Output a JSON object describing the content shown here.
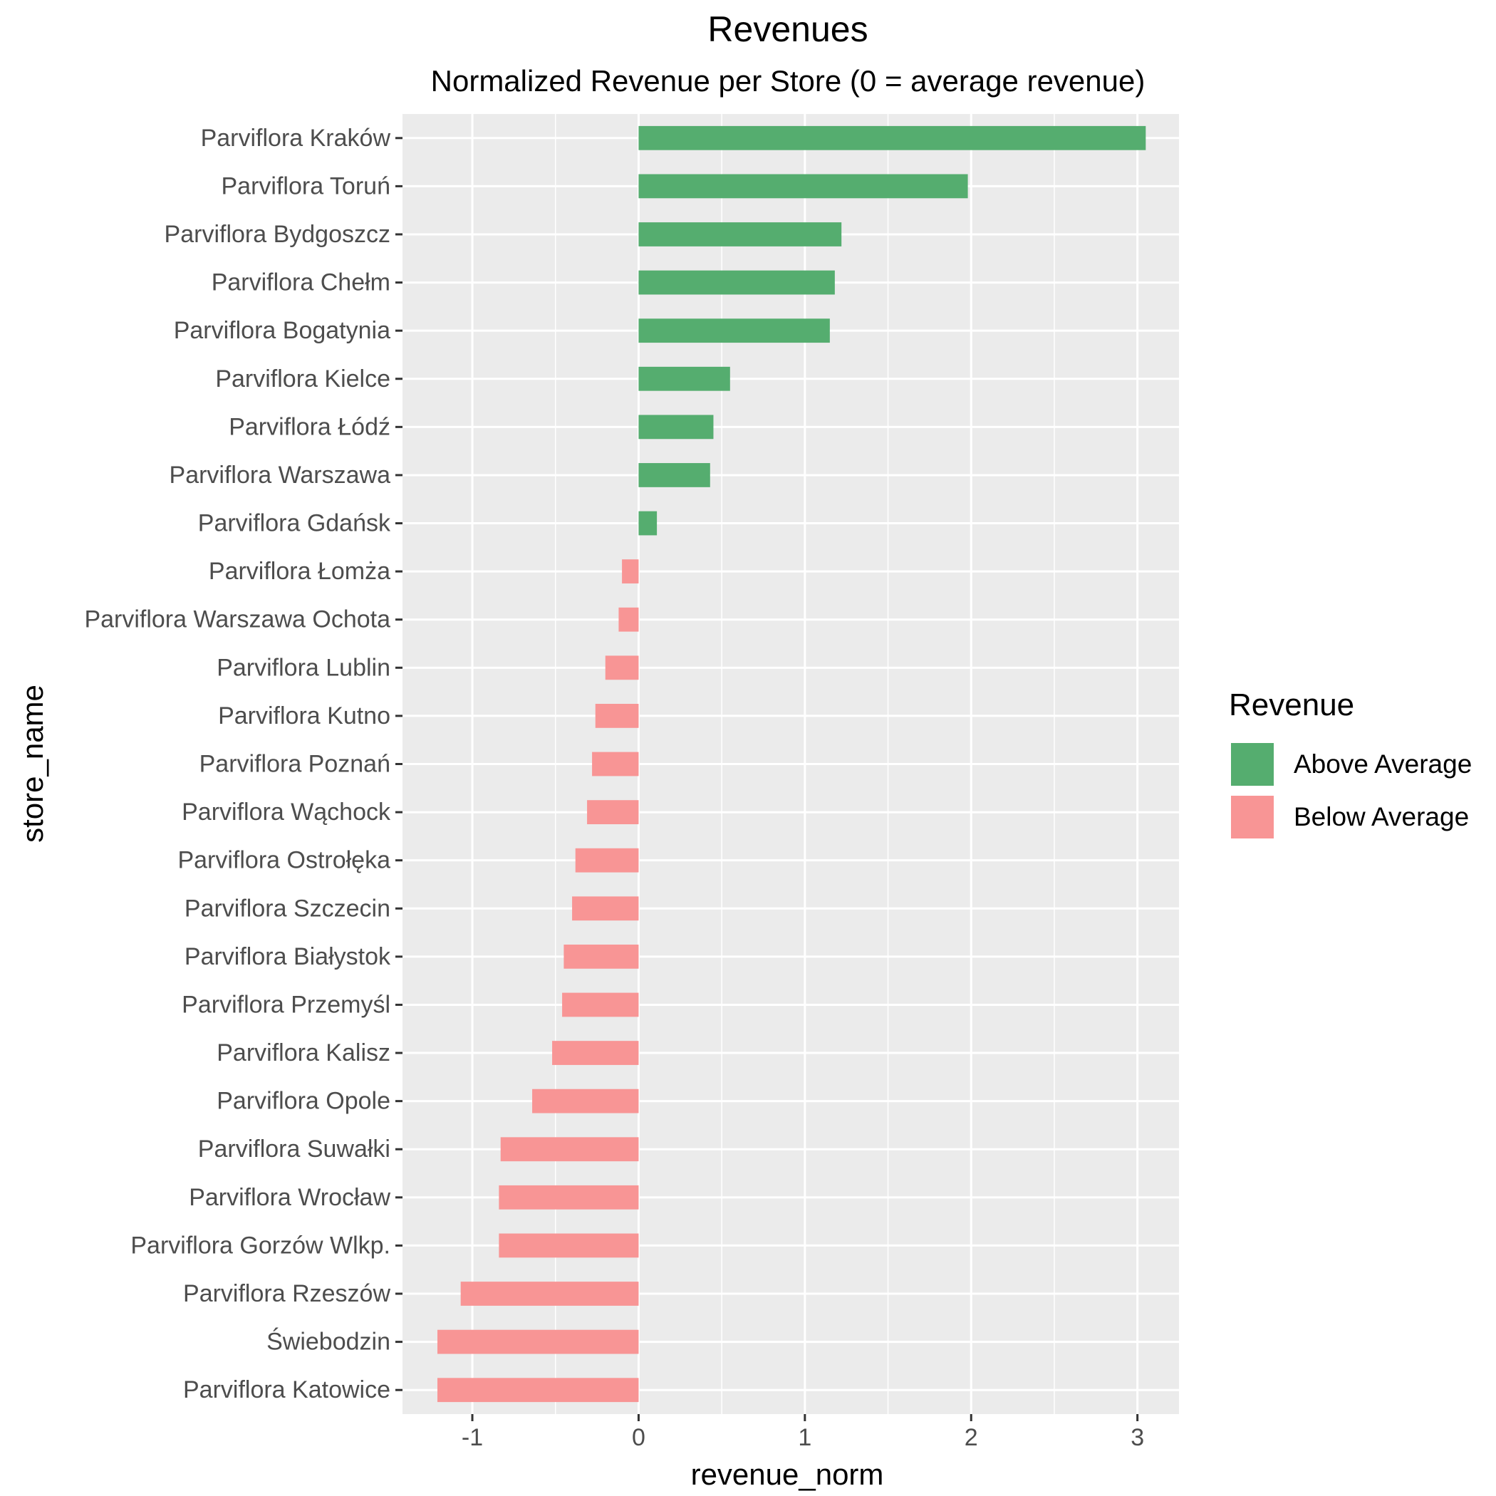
{
  "chart_data": {
    "type": "bar",
    "orientation": "horizontal",
    "title": "Revenues",
    "subtitle": "Normalized Revenue per Store (0 = average revenue)",
    "xlabel": "revenue_norm",
    "ylabel": "store_name",
    "xlim": [
      -1.42,
      3.25
    ],
    "xticks": [
      -1,
      0,
      1,
      2,
      3
    ],
    "grid": true,
    "legend": {
      "title": "Revenue",
      "position": "right",
      "items": [
        {
          "label": "Above Average",
          "color": "#55ad6f"
        },
        {
          "label": "Below Average",
          "color": "#f89595"
        }
      ]
    },
    "categories": [
      "Parviflora Kraków",
      "Parviflora Toruń",
      "Parviflora Bydgoszcz",
      "Parviflora Chełm",
      "Parviflora Bogatynia",
      "Parviflora Kielce",
      "Parviflora Łódź",
      "Parviflora Warszawa",
      "Parviflora Gdańsk",
      "Parviflora Łomża",
      "Parviflora Warszawa Ochota",
      "Parviflora Lublin",
      "Parviflora Kutno",
      "Parviflora Poznań",
      "Parviflora Wąchock",
      "Parviflora Ostrołęka",
      "Parviflora Szczecin",
      "Parviflora Białystok",
      "Parviflora Przemyśl",
      "Parviflora Kalisz",
      "Parviflora Opole",
      "Parviflora Suwałki",
      "Parviflora Wrocław",
      "Parviflora Gorzów Wlkp.",
      "Parviflora Rzeszów",
      "Świebodzin",
      "Parviflora Katowice"
    ],
    "values": [
      3.05,
      1.98,
      1.22,
      1.18,
      1.15,
      0.55,
      0.45,
      0.43,
      0.11,
      -0.1,
      -0.12,
      -0.2,
      -0.26,
      -0.28,
      -0.31,
      -0.38,
      -0.4,
      -0.45,
      -0.46,
      -0.52,
      -0.64,
      -0.83,
      -0.84,
      -0.84,
      -1.07,
      -1.21,
      -1.21
    ],
    "groups": [
      "Above Average",
      "Above Average",
      "Above Average",
      "Above Average",
      "Above Average",
      "Above Average",
      "Above Average",
      "Above Average",
      "Above Average",
      "Below Average",
      "Below Average",
      "Below Average",
      "Below Average",
      "Below Average",
      "Below Average",
      "Below Average",
      "Below Average",
      "Below Average",
      "Below Average",
      "Below Average",
      "Below Average",
      "Below Average",
      "Below Average",
      "Below Average",
      "Below Average",
      "Below Average",
      "Below Average"
    ]
  }
}
